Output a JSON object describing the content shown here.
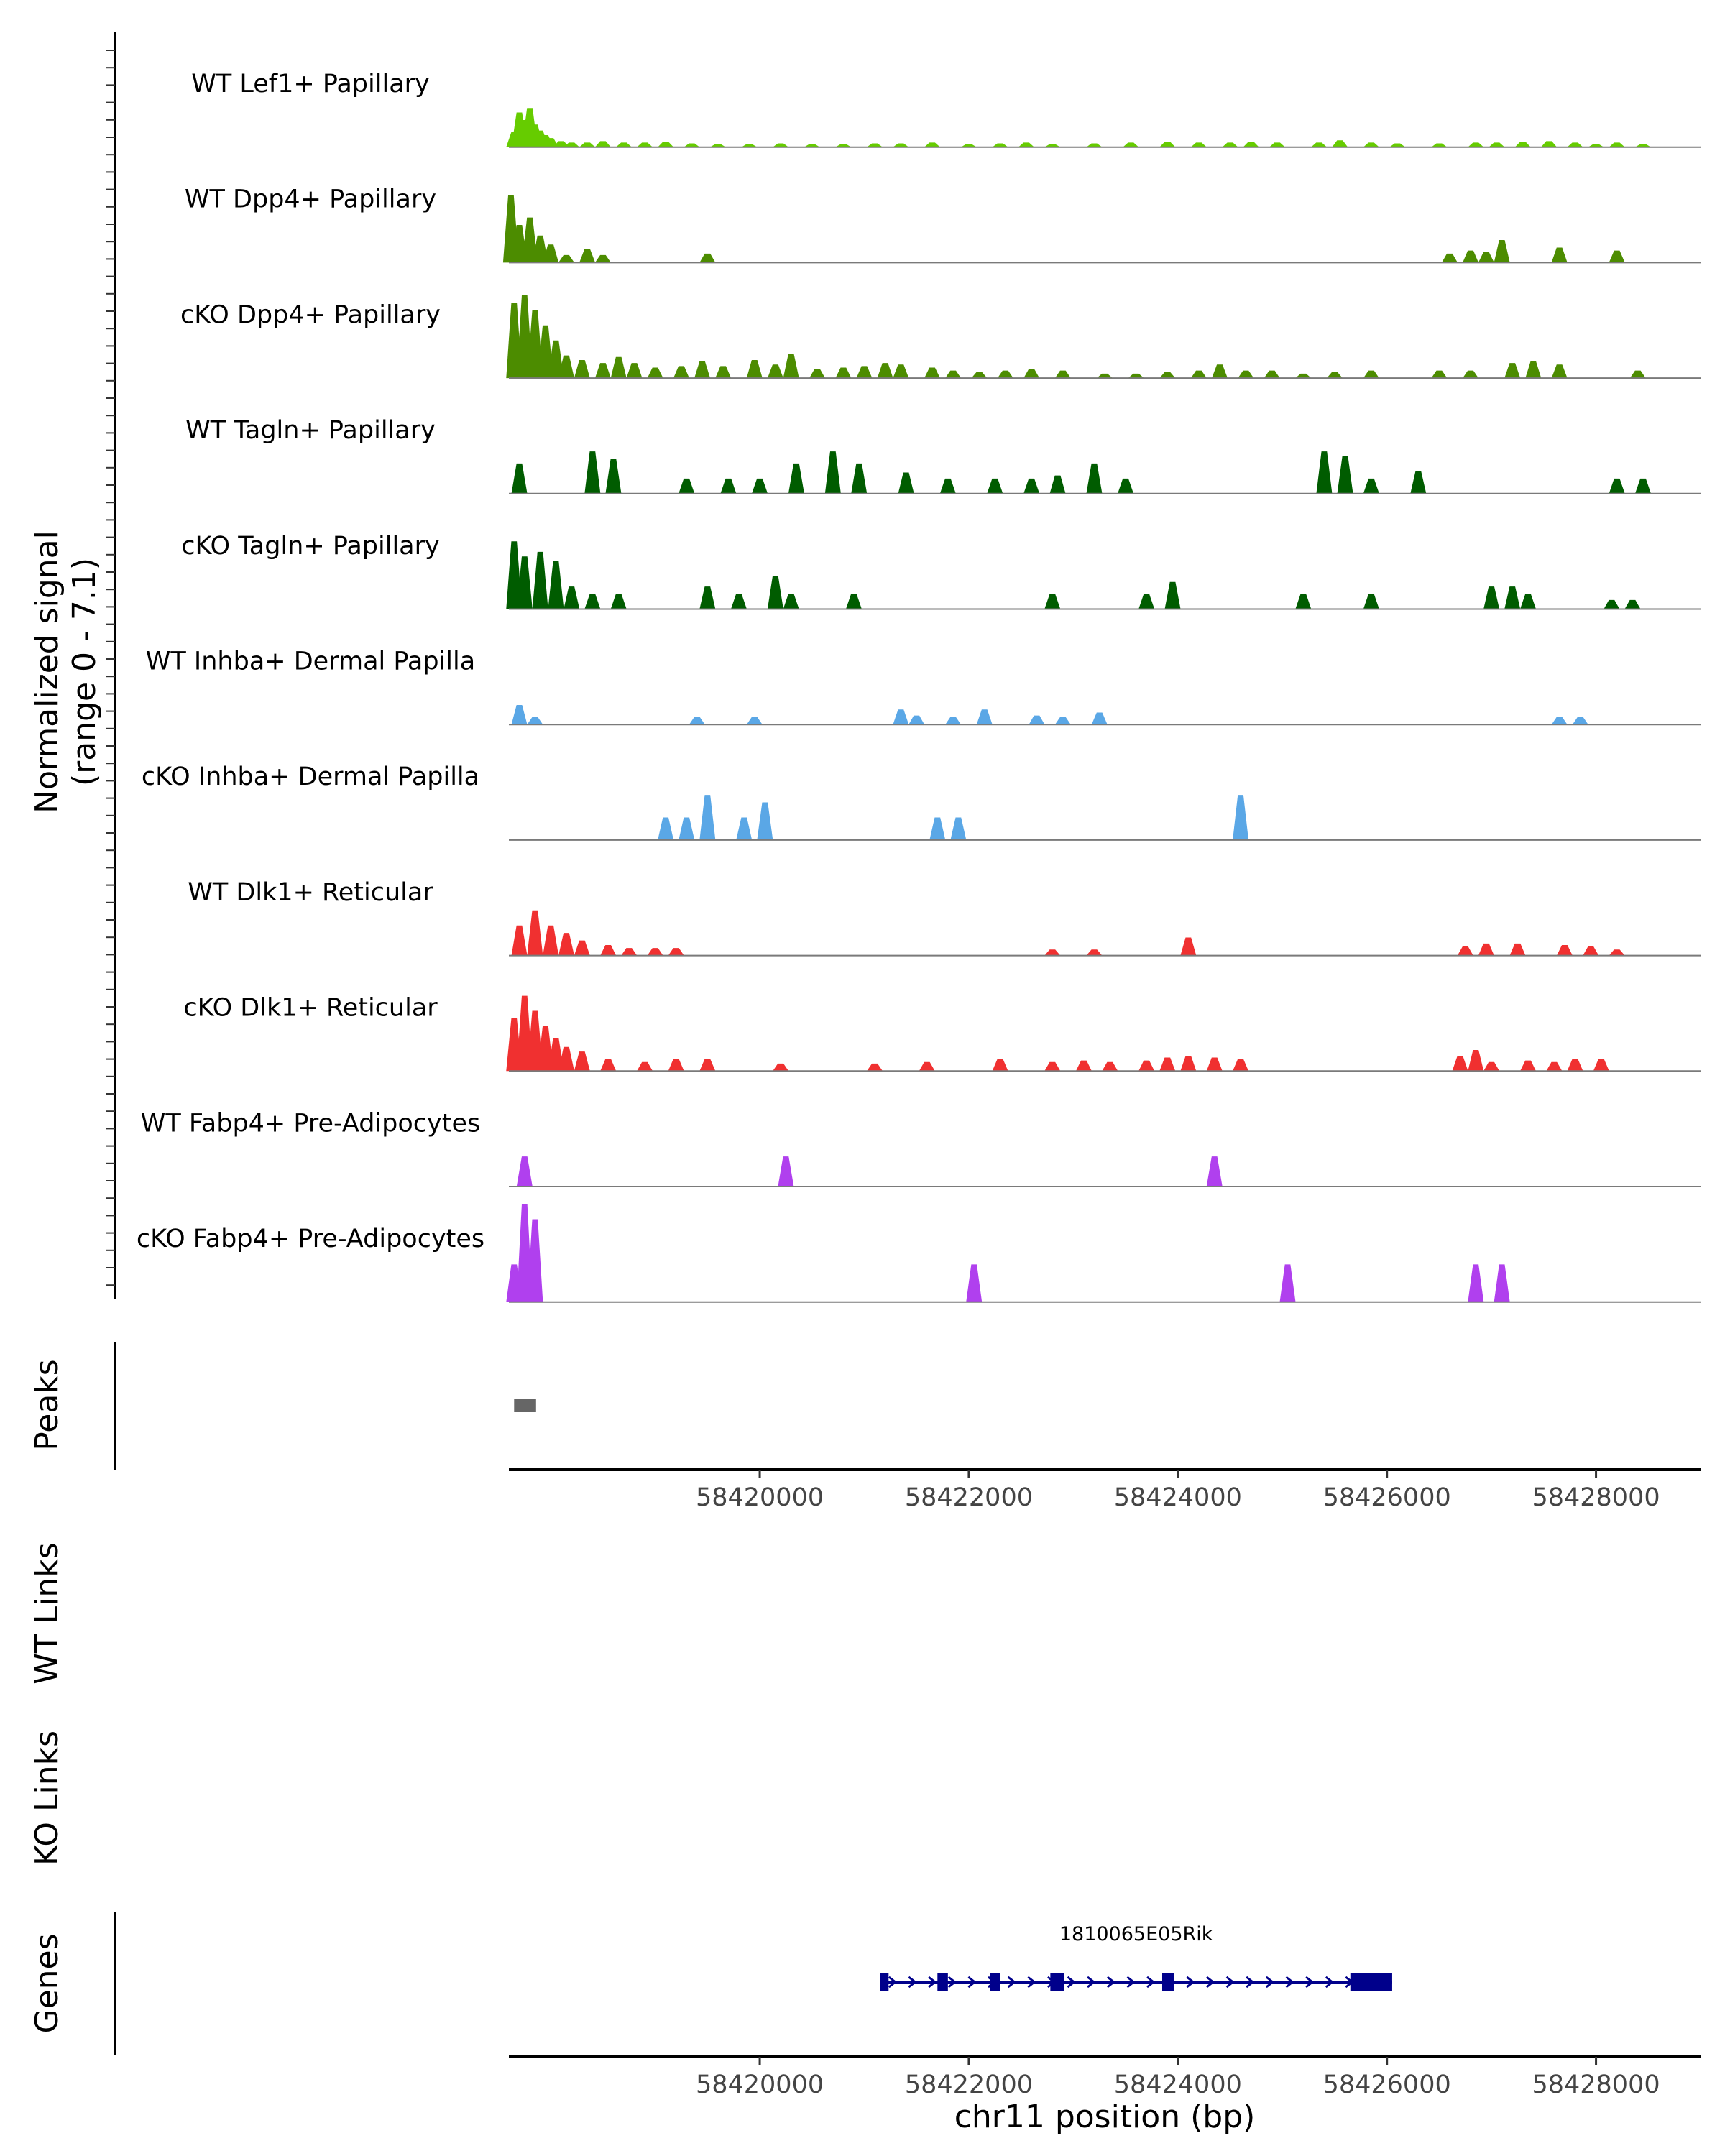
{
  "chart_data": {
    "type": "area",
    "chromosome": "chr11",
    "xrange": [
      58417600,
      58429000
    ],
    "xticks": [
      58420000,
      58422000,
      58424000,
      58426000,
      58428000
    ],
    "xtick_labels": [
      "58420000",
      "58422000",
      "58424000",
      "58426000",
      "58428000"
    ],
    "xlabel": "chr11 position (bp)",
    "ylabel_line1": "Normalized signal",
    "ylabel_line2": "(range 0 - 7.1)",
    "yrange": [
      0,
      7.1
    ],
    "panel_labels": {
      "peaks": "Peaks",
      "wt_links": "WT Links",
      "ko_links": "KO Links",
      "genes": "Genes"
    },
    "tracks": [
      {
        "name": "WT Lef1+ Papillary",
        "color": "#66cc00",
        "peaks": [
          [
            58417650,
            1.0
          ],
          [
            58417700,
            2.3
          ],
          [
            58417750,
            1.8
          ],
          [
            58417800,
            2.6
          ],
          [
            58417850,
            1.5
          ],
          [
            58417900,
            1.1
          ],
          [
            58417950,
            0.8
          ],
          [
            58418000,
            0.6
          ],
          [
            58418100,
            0.4
          ],
          [
            58418200,
            0.3
          ],
          [
            58418350,
            0.3
          ],
          [
            58418500,
            0.4
          ],
          [
            58418700,
            0.3
          ],
          [
            58418900,
            0.3
          ],
          [
            58419100,
            0.35
          ],
          [
            58419350,
            0.25
          ],
          [
            58419600,
            0.2
          ],
          [
            58419900,
            0.2
          ],
          [
            58420200,
            0.25
          ],
          [
            58420500,
            0.2
          ],
          [
            58420800,
            0.2
          ],
          [
            58421100,
            0.25
          ],
          [
            58421350,
            0.25
          ],
          [
            58421650,
            0.3
          ],
          [
            58422000,
            0.2
          ],
          [
            58422300,
            0.25
          ],
          [
            58422550,
            0.3
          ],
          [
            58422800,
            0.2
          ],
          [
            58423200,
            0.25
          ],
          [
            58423550,
            0.3
          ],
          [
            58423900,
            0.35
          ],
          [
            58424200,
            0.3
          ],
          [
            58424500,
            0.3
          ],
          [
            58424700,
            0.35
          ],
          [
            58424950,
            0.3
          ],
          [
            58425350,
            0.3
          ],
          [
            58425550,
            0.45
          ],
          [
            58425850,
            0.3
          ],
          [
            58426100,
            0.25
          ],
          [
            58426500,
            0.25
          ],
          [
            58426850,
            0.3
          ],
          [
            58427050,
            0.3
          ],
          [
            58427300,
            0.35
          ],
          [
            58427550,
            0.4
          ],
          [
            58427800,
            0.3
          ],
          [
            58428000,
            0.2
          ],
          [
            58428200,
            0.3
          ],
          [
            58428450,
            0.2
          ]
        ]
      },
      {
        "name": "WT Dpp4+ Papillary",
        "color": "#4c8c00",
        "peaks": [
          [
            58417620,
            4.5
          ],
          [
            58417700,
            2.5
          ],
          [
            58417800,
            3.0
          ],
          [
            58417900,
            1.8
          ],
          [
            58418000,
            1.2
          ],
          [
            58418150,
            0.5
          ],
          [
            58418350,
            0.9
          ],
          [
            58418500,
            0.5
          ],
          [
            58419500,
            0.6
          ],
          [
            58426600,
            0.6
          ],
          [
            58426800,
            0.8
          ],
          [
            58426950,
            0.7
          ],
          [
            58427100,
            1.5
          ],
          [
            58427650,
            1.0
          ],
          [
            58428200,
            0.8
          ]
        ]
      },
      {
        "name": "cKO Dpp4+ Papillary",
        "color": "#4c8c00",
        "peaks": [
          [
            58417650,
            5.0
          ],
          [
            58417750,
            5.5
          ],
          [
            58417850,
            4.5
          ],
          [
            58417950,
            3.5
          ],
          [
            58418050,
            2.5
          ],
          [
            58418150,
            1.5
          ],
          [
            58418300,
            1.2
          ],
          [
            58418500,
            1.0
          ],
          [
            58418650,
            1.4
          ],
          [
            58418800,
            1.0
          ],
          [
            58419000,
            0.7
          ],
          [
            58419250,
            0.8
          ],
          [
            58419450,
            1.1
          ],
          [
            58419650,
            0.8
          ],
          [
            58419950,
            1.2
          ],
          [
            58420150,
            0.9
          ],
          [
            58420300,
            1.6
          ],
          [
            58420550,
            0.6
          ],
          [
            58420800,
            0.7
          ],
          [
            58421000,
            0.8
          ],
          [
            58421200,
            1.0
          ],
          [
            58421350,
            0.9
          ],
          [
            58421650,
            0.7
          ],
          [
            58421850,
            0.5
          ],
          [
            58422100,
            0.4
          ],
          [
            58422350,
            0.5
          ],
          [
            58422600,
            0.6
          ],
          [
            58422900,
            0.5
          ],
          [
            58423300,
            0.3
          ],
          [
            58423600,
            0.3
          ],
          [
            58423900,
            0.4
          ],
          [
            58424200,
            0.5
          ],
          [
            58424400,
            0.9
          ],
          [
            58424650,
            0.5
          ],
          [
            58424900,
            0.5
          ],
          [
            58425200,
            0.3
          ],
          [
            58425500,
            0.4
          ],
          [
            58425850,
            0.5
          ],
          [
            58426500,
            0.5
          ],
          [
            58426800,
            0.5
          ],
          [
            58427200,
            1.0
          ],
          [
            58427400,
            1.1
          ],
          [
            58427650,
            0.9
          ],
          [
            58428400,
            0.5
          ]
        ]
      },
      {
        "name": "WT Tagln+ Papillary",
        "color": "#005c00",
        "peaks": [
          [
            58417700,
            2.0
          ],
          [
            58418400,
            2.8
          ],
          [
            58418600,
            2.3
          ],
          [
            58419300,
            1.0
          ],
          [
            58419700,
            1.0
          ],
          [
            58420000,
            1.0
          ],
          [
            58420350,
            2.0
          ],
          [
            58420700,
            2.8
          ],
          [
            58420950,
            2.0
          ],
          [
            58421400,
            1.4
          ],
          [
            58421800,
            1.0
          ],
          [
            58422250,
            1.0
          ],
          [
            58422600,
            1.0
          ],
          [
            58422850,
            1.2
          ],
          [
            58423200,
            2.0
          ],
          [
            58423500,
            1.0
          ],
          [
            58425400,
            2.8
          ],
          [
            58425600,
            2.5
          ],
          [
            58425850,
            1.0
          ],
          [
            58426300,
            1.5
          ],
          [
            58428200,
            1.0
          ],
          [
            58428450,
            1.0
          ]
        ]
      },
      {
        "name": "cKO Tagln+ Papillary",
        "color": "#005c00",
        "peaks": [
          [
            58417650,
            4.5
          ],
          [
            58417750,
            3.5
          ],
          [
            58417900,
            3.8
          ],
          [
            58418050,
            3.2
          ],
          [
            58418200,
            1.5
          ],
          [
            58418400,
            1.0
          ],
          [
            58418650,
            1.0
          ],
          [
            58419500,
            1.5
          ],
          [
            58419800,
            1.0
          ],
          [
            58420150,
            2.2
          ],
          [
            58420300,
            1.0
          ],
          [
            58420900,
            1.0
          ],
          [
            58422800,
            1.0
          ],
          [
            58423700,
            1.0
          ],
          [
            58423950,
            1.8
          ],
          [
            58425200,
            1.0
          ],
          [
            58425850,
            1.0
          ],
          [
            58427000,
            1.5
          ],
          [
            58427200,
            1.5
          ],
          [
            58427350,
            1.0
          ],
          [
            58428150,
            0.6
          ],
          [
            58428350,
            0.6
          ]
        ]
      },
      {
        "name": "WT Inhba+ Dermal Papilla",
        "color": "#5aa7e6",
        "peaks": [
          [
            58417700,
            1.3
          ],
          [
            58417850,
            0.5
          ],
          [
            58419400,
            0.5
          ],
          [
            58419950,
            0.5
          ],
          [
            58421350,
            1.0
          ],
          [
            58421500,
            0.6
          ],
          [
            58421850,
            0.5
          ],
          [
            58422150,
            1.0
          ],
          [
            58422650,
            0.6
          ],
          [
            58422900,
            0.5
          ],
          [
            58423250,
            0.8
          ],
          [
            58427650,
            0.5
          ],
          [
            58427850,
            0.5
          ]
        ]
      },
      {
        "name": "cKO Inhba+ Dermal Papilla",
        "color": "#5aa7e6",
        "peaks": [
          [
            58419100,
            1.5
          ],
          [
            58419300,
            1.5
          ],
          [
            58419500,
            3.0
          ],
          [
            58419850,
            1.5
          ],
          [
            58420050,
            2.5
          ],
          [
            58421700,
            1.5
          ],
          [
            58421900,
            1.5
          ],
          [
            58424600,
            3.0
          ]
        ]
      },
      {
        "name": "WT Dlk1+ Reticular",
        "color": "#f03030",
        "peaks": [
          [
            58417700,
            2.0
          ],
          [
            58417850,
            3.0
          ],
          [
            58418000,
            2.0
          ],
          [
            58418150,
            1.5
          ],
          [
            58418300,
            1.0
          ],
          [
            58418550,
            0.7
          ],
          [
            58418750,
            0.5
          ],
          [
            58419000,
            0.5
          ],
          [
            58419200,
            0.5
          ],
          [
            58422800,
            0.4
          ],
          [
            58423200,
            0.4
          ],
          [
            58424100,
            1.2
          ],
          [
            58426750,
            0.6
          ],
          [
            58426950,
            0.8
          ],
          [
            58427250,
            0.8
          ],
          [
            58427700,
            0.7
          ],
          [
            58427950,
            0.6
          ],
          [
            58428200,
            0.4
          ]
        ]
      },
      {
        "name": "cKO Dlk1+ Reticular",
        "color": "#f03030",
        "peaks": [
          [
            58417650,
            3.5
          ],
          [
            58417750,
            5.0
          ],
          [
            58417850,
            4.0
          ],
          [
            58417950,
            3.0
          ],
          [
            58418050,
            2.2
          ],
          [
            58418150,
            1.6
          ],
          [
            58418300,
            1.3
          ],
          [
            58418550,
            0.8
          ],
          [
            58418900,
            0.6
          ],
          [
            58419200,
            0.8
          ],
          [
            58419500,
            0.8
          ],
          [
            58420200,
            0.5
          ],
          [
            58421100,
            0.5
          ],
          [
            58421600,
            0.6
          ],
          [
            58422300,
            0.8
          ],
          [
            58422800,
            0.6
          ],
          [
            58423100,
            0.7
          ],
          [
            58423350,
            0.6
          ],
          [
            58423700,
            0.7
          ],
          [
            58423900,
            0.9
          ],
          [
            58424100,
            1.0
          ],
          [
            58424350,
            0.9
          ],
          [
            58424600,
            0.8
          ],
          [
            58426700,
            1.0
          ],
          [
            58426850,
            1.4
          ],
          [
            58427000,
            0.6
          ],
          [
            58427350,
            0.7
          ],
          [
            58427600,
            0.6
          ],
          [
            58427800,
            0.8
          ],
          [
            58428050,
            0.8
          ]
        ]
      },
      {
        "name": "WT Fabp4+ Pre-Adipocytes",
        "color": "#b040ee",
        "peaks": [
          [
            58417750,
            2.0
          ],
          [
            58420250,
            2.0
          ],
          [
            58424350,
            2.0
          ]
        ]
      },
      {
        "name": "cKO Fabp4+ Pre-Adipocytes",
        "color": "#b040ee",
        "peaks": [
          [
            58417650,
            2.5
          ],
          [
            58417750,
            6.5
          ],
          [
            58417850,
            5.5
          ],
          [
            58422050,
            2.5
          ],
          [
            58425050,
            2.5
          ],
          [
            58426850,
            2.5
          ],
          [
            58427100,
            2.5
          ]
        ]
      }
    ],
    "peak_regions": [
      [
        58417650,
        58417860
      ]
    ],
    "gene": {
      "name": "1810065E05Rik",
      "strand": "+",
      "start": 58421150,
      "end": 58426050,
      "exons": [
        [
          58421150,
          58421230
        ],
        [
          58421700,
          58421800
        ],
        [
          58422200,
          58422300
        ],
        [
          58422780,
          58422910
        ],
        [
          58423850,
          58423960
        ],
        [
          58425650,
          58426050
        ]
      ]
    },
    "links_wt": [],
    "links_ko": []
  }
}
